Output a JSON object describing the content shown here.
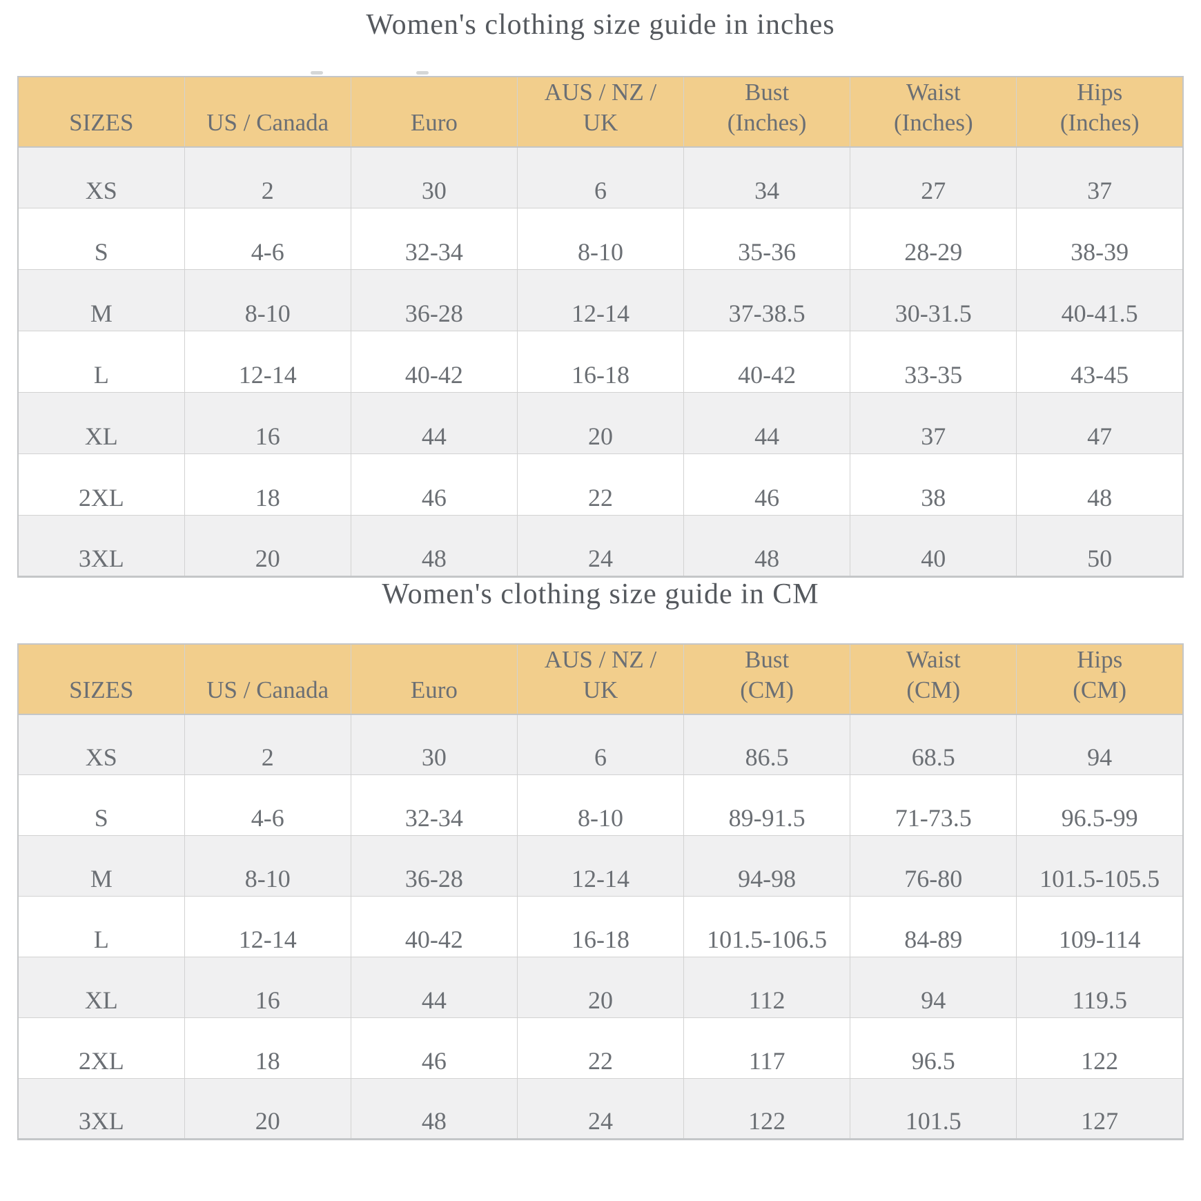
{
  "tables": [
    {
      "id": "inches",
      "title": "Women's clothing size guide in inches",
      "columns": [
        "SIZES",
        "US / Canada",
        "Euro",
        "AUS / NZ /\nUK",
        "Bust\n(Inches)",
        "Waist\n(Inches)",
        "Hips\n(Inches)"
      ],
      "rows": [
        [
          "XS",
          "2",
          "30",
          "6",
          "34",
          "27",
          "37"
        ],
        [
          "S",
          "4-6",
          "32-34",
          "8-10",
          "35-36",
          "28-29",
          "38-39"
        ],
        [
          "M",
          "8-10",
          "36-28",
          "12-14",
          "37-38.5",
          "30-31.5",
          "40-41.5"
        ],
        [
          "L",
          "12-14",
          "40-42",
          "16-18",
          "40-42",
          "33-35",
          "43-45"
        ],
        [
          "XL",
          "16",
          "44",
          "20",
          "44",
          "37",
          "47"
        ],
        [
          "2XL",
          "18",
          "46",
          "22",
          "46",
          "38",
          "48"
        ],
        [
          "3XL",
          "20",
          "48",
          "24",
          "48",
          "40",
          "50"
        ]
      ]
    },
    {
      "id": "cm",
      "title": "Women's clothing size guide in CM",
      "columns": [
        "SIZES",
        "US / Canada",
        "Euro",
        "AUS / NZ /\nUK",
        "Bust\n(CM)",
        "Waist\n(CM)",
        "Hips\n(CM)"
      ],
      "rows": [
        [
          "XS",
          "2",
          "30",
          "6",
          "86.5",
          "68.5",
          "94"
        ],
        [
          "S",
          "4-6",
          "32-34",
          "8-10",
          "89-91.5",
          "71-73.5",
          "96.5-99"
        ],
        [
          "M",
          "8-10",
          "36-28",
          "12-14",
          "94-98",
          "76-80",
          "101.5-105.5"
        ],
        [
          "L",
          "12-14",
          "40-42",
          "16-18",
          "101.5-106.5",
          "84-89",
          "109-114"
        ],
        [
          "XL",
          "16",
          "44",
          "20",
          "112",
          "94",
          "119.5"
        ],
        [
          "2XL",
          "18",
          "46",
          "22",
          "117",
          "96.5",
          "122"
        ],
        [
          "3XL",
          "20",
          "48",
          "24",
          "122",
          "101.5",
          "127"
        ]
      ]
    }
  ],
  "colors": {
    "header_bg": "#F2CE8C",
    "stripe_bg": "#F0F0F1",
    "row_bg": "#FFFFFF",
    "cell_text": "#6B6F74",
    "title_text": "#55595E",
    "border": "#D2D2D2",
    "border_strong": "#C4C6C8"
  }
}
